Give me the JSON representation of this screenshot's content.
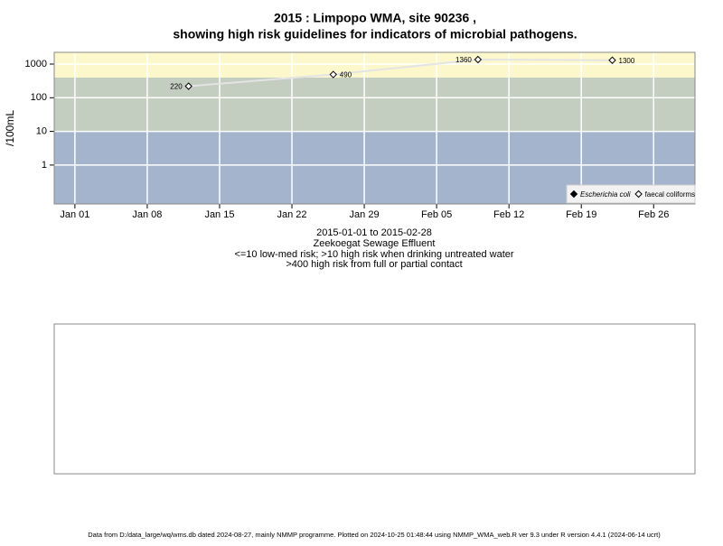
{
  "chart_data": {
    "type": "line",
    "title": "2015 : Limpopo WMA, site 90236 ,",
    "subtitle": "showing high risk guidelines for indicators of microbial pathogens.",
    "y_label": "/100mL",
    "notes": [
      "2015-01-01 to 2015-02-28",
      "Zeekoegat Sewage Effluent",
      "<=10 low-med risk; >10 high risk when drinking untreated water",
      ">400 high risk from full or partial contact"
    ],
    "footer": "Data from D:/data_large/wq/wms.db dated 2024-08-27, mainly NMMP programme. Plotted on 2024-10-25 01:48:44 using NMMP_WMA_web.R ver 9.3 under R version 4.4.1 (2024-06-14 ucrt)",
    "x": [
      "2015-01-12",
      "2015-01-26",
      "2015-02-09",
      "2015-02-22"
    ],
    "series": [
      {
        "name": "Escherichia coli",
        "color": "#000000",
        "marker": "filled-diamond",
        "values": [
          null,
          null,
          null,
          null
        ]
      },
      {
        "name": "faecal coliforms",
        "color": "#000000",
        "marker": "open-diamond",
        "line_color": "#e4e4e4",
        "values": [
          220,
          490,
          1360,
          1300
        ]
      }
    ],
    "log_y": true,
    "ylim": [
      0.07,
      2230
    ],
    "yticks": [
      1,
      10,
      100,
      1000
    ],
    "xlim": [
      "2014-12-30",
      "2015-03-02"
    ],
    "xticks": [
      {
        "value": "2015-01-01",
        "label": "Jan 01"
      },
      {
        "value": "2015-01-08",
        "label": "Jan 08"
      },
      {
        "value": "2015-01-15",
        "label": "Jan 15"
      },
      {
        "value": "2015-01-22",
        "label": "Jan 22"
      },
      {
        "value": "2015-01-29",
        "label": "Jan 29"
      },
      {
        "value": "2015-02-05",
        "label": "Feb 05"
      },
      {
        "value": "2015-02-12",
        "label": "Feb 12"
      },
      {
        "value": "2015-02-19",
        "label": "Feb 19"
      },
      {
        "value": "2015-02-26",
        "label": "Feb 26"
      }
    ],
    "thresholds": [
      10,
      400
    ],
    "band_colors": [
      "#a3b4cc",
      "#c3cdc0",
      "#fdf8cc"
    ],
    "grid": true,
    "legend_position": "bottom-right"
  }
}
